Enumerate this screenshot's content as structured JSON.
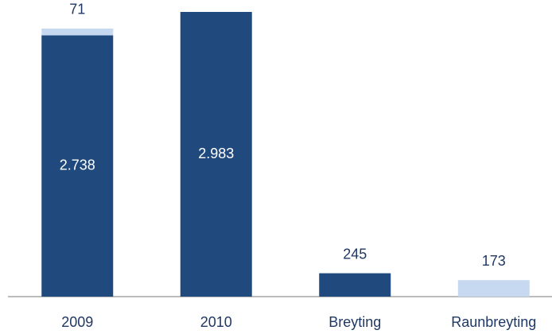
{
  "chart_data": {
    "type": "bar",
    "categories": [
      "2009",
      "2010",
      "Breyting",
      "Raunbreyting"
    ],
    "stacked": true,
    "series": [
      {
        "color": "#204a7e",
        "values": [
          2738,
          2983,
          245,
          null
        ],
        "value_labels": [
          "2.738",
          "2.983",
          "245",
          null
        ]
      },
      {
        "color": "#c6d9f1",
        "values": [
          71,
          null,
          null,
          173
        ]
      }
    ]
  }
}
